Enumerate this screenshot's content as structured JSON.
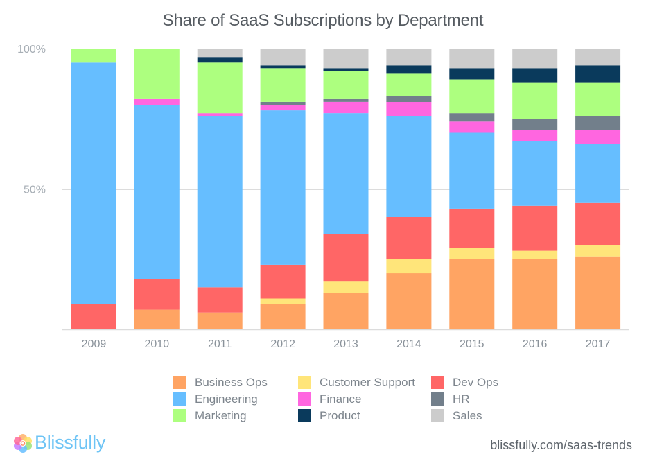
{
  "chart_data": {
    "type": "bar",
    "stacked": true,
    "normalized": true,
    "title": "Share of SaaS Subscriptions by Department",
    "xlabel": "",
    "ylabel": "",
    "ylim": [
      0,
      100
    ],
    "yticks": [
      {
        "value": 50,
        "label": "50%"
      },
      {
        "value": 100,
        "label": "100%"
      }
    ],
    "grid": true,
    "legend_position": "bottom",
    "categories": [
      "2009",
      "2010",
      "2011",
      "2012",
      "2013",
      "2014",
      "2015",
      "2016",
      "2017"
    ],
    "series": [
      {
        "name": "Business Ops",
        "color": "#ffa463",
        "values": [
          0,
          7,
          6,
          9,
          13,
          20,
          25,
          25,
          26
        ]
      },
      {
        "name": "Customer Support",
        "color": "#ffe57a",
        "values": [
          0,
          0,
          0,
          2,
          4,
          5,
          4,
          3,
          4
        ]
      },
      {
        "name": "Dev Ops",
        "color": "#ff6666",
        "values": [
          9,
          11,
          9,
          12,
          17,
          15,
          14,
          16,
          15
        ]
      },
      {
        "name": "Engineering",
        "color": "#66beff",
        "values": [
          86,
          62,
          61,
          55,
          43,
          36,
          27,
          23,
          21
        ]
      },
      {
        "name": "Finance",
        "color": "#ff66e0",
        "values": [
          0,
          2,
          1,
          2,
          4,
          5,
          4,
          4,
          5
        ]
      },
      {
        "name": "HR",
        "color": "#727f8b",
        "values": [
          0,
          0,
          0,
          1,
          1,
          2,
          3,
          4,
          5
        ]
      },
      {
        "name": "Marketing",
        "color": "#adff7f",
        "values": [
          5,
          18,
          18,
          12,
          10,
          8,
          12,
          13,
          12
        ]
      },
      {
        "name": "Product",
        "color": "#0a3a5c",
        "values": [
          0,
          0,
          2,
          1,
          1,
          3,
          4,
          5,
          6
        ]
      },
      {
        "name": "Sales",
        "color": "#cccccc",
        "values": [
          0,
          0,
          3,
          6,
          7,
          6,
          7,
          7,
          6
        ]
      }
    ]
  },
  "legend": [
    {
      "label": "Business Ops",
      "color": "#ffa463"
    },
    {
      "label": "Customer Support",
      "color": "#ffe57a"
    },
    {
      "label": "Dev Ops",
      "color": "#ff6666"
    },
    {
      "label": "Engineering",
      "color": "#66beff"
    },
    {
      "label": "Finance",
      "color": "#ff66e0"
    },
    {
      "label": "HR",
      "color": "#727f8b"
    },
    {
      "label": "Marketing",
      "color": "#adff7f"
    },
    {
      "label": "Product",
      "color": "#0a3a5c"
    },
    {
      "label": "Sales",
      "color": "#cccccc"
    }
  ],
  "footer": {
    "brand_name": "Blissfully",
    "logo_icon": "flower-logo-icon",
    "source_url": "blissfully.com/saas-trends"
  }
}
